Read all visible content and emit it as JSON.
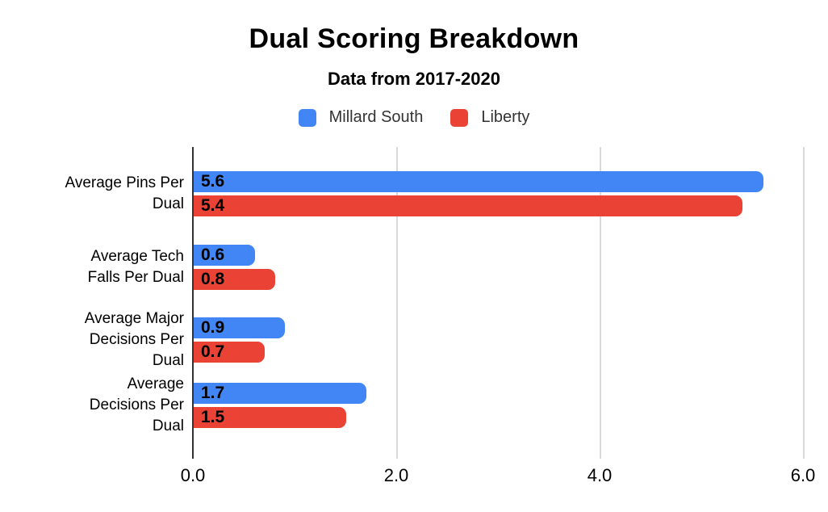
{
  "title": "Dual Scoring Breakdown",
  "subtitle": "Data from 2017-2020",
  "legend": {
    "position": "top",
    "items": [
      {
        "label": "Millard South",
        "color": "#4285f4"
      },
      {
        "label": "Liberty",
        "color": "#ea4335"
      }
    ]
  },
  "chart_data": {
    "type": "bar",
    "orientation": "horizontal",
    "title": "Dual Scoring Breakdown",
    "subtitle": "Data from 2017-2020",
    "categories": [
      "Average Pins Per Dual",
      "Average Tech Falls Per Dual",
      "Average Major Decisions Per Dual",
      "Average Decisions Per Dual"
    ],
    "category_label_lines": [
      [
        "Average Pins Per",
        "Dual"
      ],
      [
        "Average Tech",
        "Falls Per Dual"
      ],
      [
        "Average Major",
        "Decisions Per",
        "Dual"
      ],
      [
        "Average",
        "Decisions Per",
        "Dual"
      ]
    ],
    "series": [
      {
        "name": "Millard South",
        "color": "#4285f4",
        "values": [
          5.6,
          0.6,
          0.9,
          1.7
        ]
      },
      {
        "name": "Liberty",
        "color": "#ea4335",
        "values": [
          5.4,
          0.8,
          0.7,
          1.5
        ]
      }
    ],
    "xlim": [
      0,
      6.13
    ],
    "xticks": [
      0,
      2,
      4,
      6
    ],
    "xtick_labels": [
      "0.0",
      "2.0",
      "4.0",
      "6.0"
    ],
    "grid": true,
    "value_labels": true,
    "legend_position": "top",
    "colors": {
      "axis": "#333333",
      "gridline": "#d9d9d9",
      "text": "#000000"
    }
  }
}
